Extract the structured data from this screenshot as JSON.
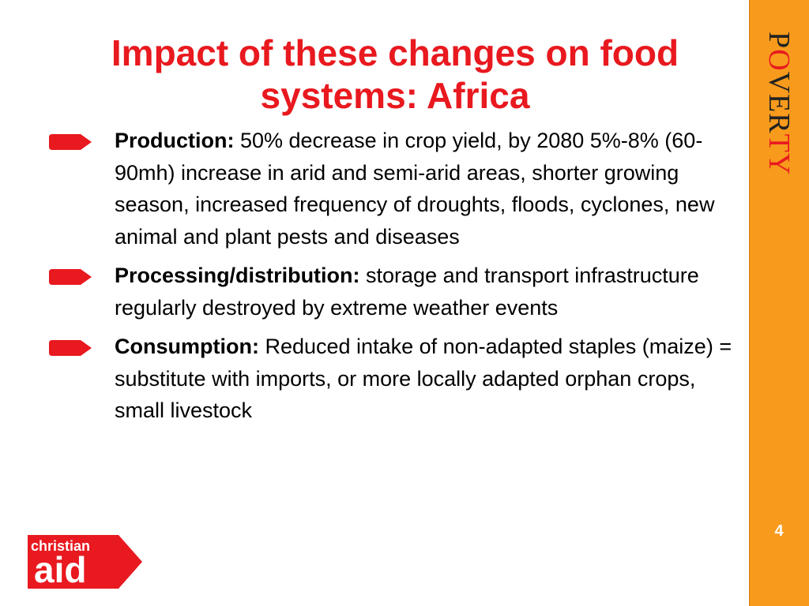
{
  "slide": {
    "title": "Impact of these changes on food systems: Africa",
    "page_number": "4"
  },
  "sidebar": {
    "word_parts": [
      "P",
      "O",
      "VER",
      "TY"
    ]
  },
  "bullets": [
    {
      "heading": "Production:",
      "text": " 50% decrease in crop yield, by 2080 5%-8% (60-90mh) increase in arid and semi-arid areas, shorter growing season, increased frequency of droughts, floods, cyclones, new animal and plant pests and diseases"
    },
    {
      "heading": "Processing/distribution:",
      "text": " storage and transport infrastructure regularly destroyed by extreme weather events"
    },
    {
      "heading": "Consumption:",
      "text": " Reduced intake of non-adapted staples (maize) = substitute with imports, or more locally adapted orphan crops, small livestock"
    }
  ],
  "logo": {
    "line1": "christian",
    "line2": "aid"
  },
  "colors": {
    "accent_red": "#e8191f",
    "sidebar_orange": "#f89a1c"
  }
}
